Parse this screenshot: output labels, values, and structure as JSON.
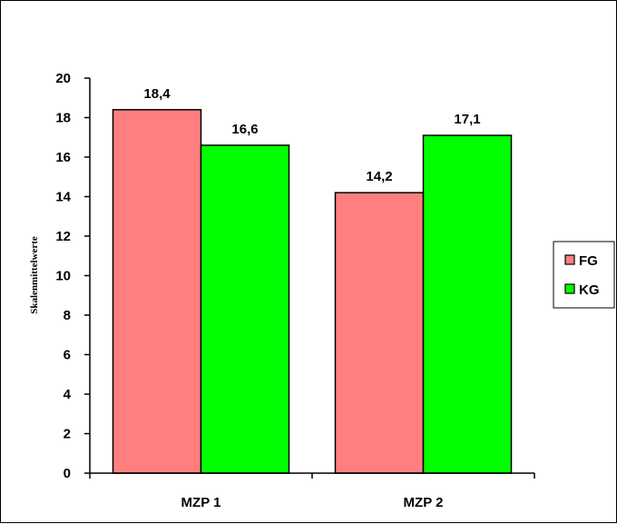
{
  "chart_data": {
    "type": "bar",
    "categories": [
      "MZP 1",
      "MZP 2"
    ],
    "series": [
      {
        "name": "FG",
        "values": [
          18.4,
          14.2
        ],
        "labels": [
          "18,4",
          "14,2"
        ],
        "color": "#ff7f7f"
      },
      {
        "name": "KG",
        "values": [
          16.6,
          17.1
        ],
        "labels": [
          "16,6",
          "17,1"
        ],
        "color": "#00ff00"
      }
    ],
    "title": "",
    "xlabel": "",
    "ylabel": "Skalenmittelwerte",
    "ylim": [
      0,
      20
    ],
    "yticks": [
      0,
      2,
      4,
      6,
      8,
      10,
      12,
      14,
      16,
      18,
      20
    ],
    "ytick_labels": [
      "0",
      "2",
      "4",
      "6",
      "8",
      "10",
      "12",
      "14",
      "16",
      "18",
      "20"
    ],
    "grid": false,
    "legend_position": "right"
  }
}
